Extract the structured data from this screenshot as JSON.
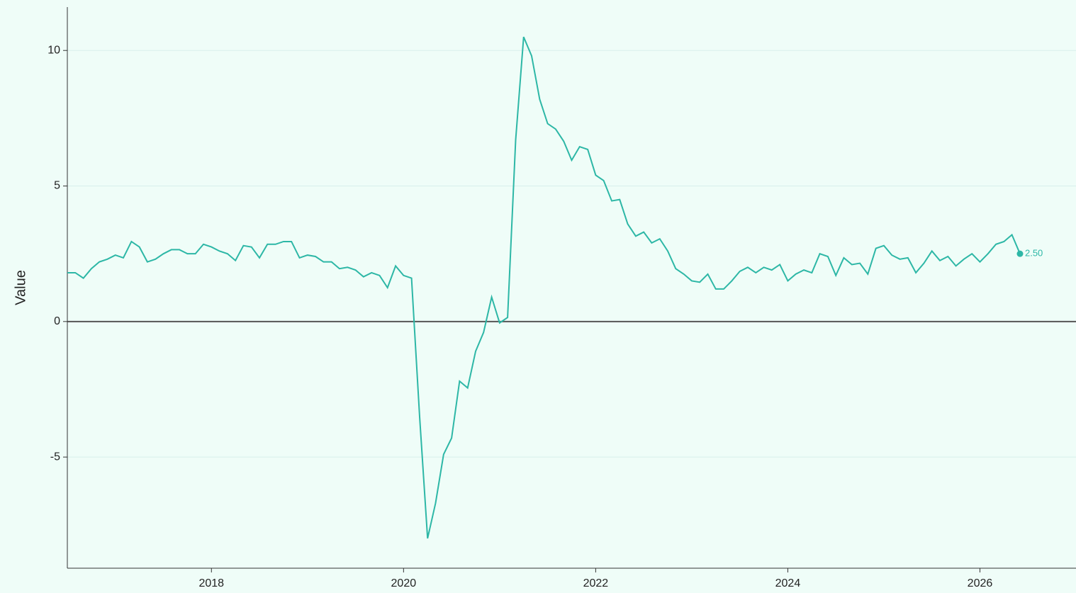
{
  "chart_data": {
    "type": "line",
    "ylabel": "Value",
    "x": [
      2016.5,
      2016.583,
      2016.667,
      2016.75,
      2016.833,
      2016.917,
      2017.0,
      2017.083,
      2017.167,
      2017.25,
      2017.333,
      2017.417,
      2017.5,
      2017.583,
      2017.667,
      2017.75,
      2017.833,
      2017.917,
      2018.0,
      2018.083,
      2018.167,
      2018.25,
      2018.333,
      2018.417,
      2018.5,
      2018.583,
      2018.667,
      2018.75,
      2018.833,
      2018.917,
      2019.0,
      2019.083,
      2019.167,
      2019.25,
      2019.333,
      2019.417,
      2019.5,
      2019.583,
      2019.667,
      2019.75,
      2019.833,
      2019.917,
      2020.0,
      2020.083,
      2020.167,
      2020.25,
      2020.333,
      2020.417,
      2020.5,
      2020.583,
      2020.667,
      2020.75,
      2020.833,
      2020.917,
      2021.0,
      2021.083,
      2021.167,
      2021.25,
      2021.333,
      2021.417,
      2021.5,
      2021.583,
      2021.667,
      2021.75,
      2021.833,
      2021.917,
      2022.0,
      2022.083,
      2022.167,
      2022.25,
      2022.333,
      2022.417,
      2022.5,
      2022.583,
      2022.667,
      2022.75,
      2022.833,
      2022.917,
      2023.0,
      2023.083,
      2023.167,
      2023.25,
      2023.333,
      2023.417,
      2023.5,
      2023.583,
      2023.667,
      2023.75,
      2023.833,
      2023.917,
      2024.0,
      2024.083,
      2024.167,
      2024.25,
      2024.333,
      2024.417,
      2024.5,
      2024.583,
      2024.667,
      2024.75,
      2024.833,
      2024.917,
      2025.0,
      2025.083,
      2025.167,
      2025.25,
      2025.333,
      2025.417,
      2025.5,
      2025.583,
      2025.667,
      2025.75,
      2025.833,
      2025.917,
      2026.0,
      2026.083,
      2026.167,
      2026.25,
      2026.333,
      2026.417
    ],
    "series": [
      {
        "color": "#2db7a6",
        "values": [
          1.8,
          1.8,
          1.6,
          1.95,
          2.2,
          2.3,
          2.45,
          2.35,
          2.95,
          2.75,
          2.2,
          2.3,
          2.5,
          2.65,
          2.65,
          2.5,
          2.5,
          2.85,
          2.75,
          2.6,
          2.5,
          2.25,
          2.8,
          2.75,
          2.35,
          2.85,
          2.85,
          2.95,
          2.95,
          2.35,
          2.45,
          2.4,
          2.2,
          2.2,
          1.95,
          2.0,
          1.9,
          1.65,
          1.8,
          1.7,
          1.25,
          2.05,
          1.7,
          1.6,
          -3.5,
          -8.0,
          -6.7,
          -4.9,
          -4.3,
          -2.2,
          -2.45,
          -1.1,
          -0.4,
          0.9,
          -0.05,
          0.15,
          6.7,
          10.5,
          9.8,
          8.2,
          7.3,
          7.1,
          6.65,
          5.95,
          6.45,
          6.35,
          5.4,
          5.2,
          4.45,
          4.5,
          3.6,
          3.15,
          3.3,
          2.9,
          3.05,
          2.6,
          1.95,
          1.75,
          1.5,
          1.45,
          1.75,
          1.2,
          1.2,
          1.5,
          1.85,
          2.0,
          1.8,
          2.0,
          1.9,
          2.1,
          1.5,
          1.75,
          1.9,
          1.8,
          2.5,
          2.4,
          1.7,
          2.35,
          2.1,
          2.15,
          1.75,
          2.7,
          2.8,
          2.45,
          2.3,
          2.35,
          1.8,
          2.15,
          2.6,
          2.25,
          2.4,
          2.05,
          2.3,
          2.5,
          2.2,
          2.5,
          2.85,
          2.95,
          3.2,
          2.5
        ],
        "value_labels": [
          null,
          null,
          null,
          null,
          null,
          null,
          null,
          null,
          null,
          null,
          null,
          null,
          null,
          null,
          null,
          null,
          null,
          null,
          null,
          null,
          null,
          null,
          null,
          null,
          null,
          null,
          null,
          null,
          null,
          null,
          null,
          null,
          null,
          null,
          null,
          null,
          null,
          null,
          null,
          null,
          null,
          null,
          null,
          null,
          null,
          null,
          null,
          null,
          null,
          null,
          null,
          null,
          null,
          null,
          null,
          null,
          null,
          null,
          null,
          null,
          null,
          null,
          null,
          null,
          null,
          null,
          null,
          null,
          null,
          null,
          null,
          null,
          null,
          null,
          null,
          null,
          null,
          null,
          null,
          null,
          null,
          null,
          null,
          null,
          null,
          null,
          null,
          null,
          null,
          null,
          null,
          null,
          null,
          null,
          null,
          null,
          null,
          null,
          null,
          null,
          null,
          null,
          null,
          null,
          null,
          null,
          null,
          null,
          null,
          null,
          null,
          null,
          null,
          null,
          null,
          null,
          null,
          null,
          null,
          "2.50"
        ]
      }
    ],
    "xlim": [
      2016.5,
      2027.0
    ],
    "xticks": [
      2018,
      2020,
      2022,
      2024,
      2026
    ],
    "ylim": [
      -9.1,
      11.6
    ],
    "yticks": [
      -5,
      0,
      5,
      10
    ],
    "grid": true
  }
}
